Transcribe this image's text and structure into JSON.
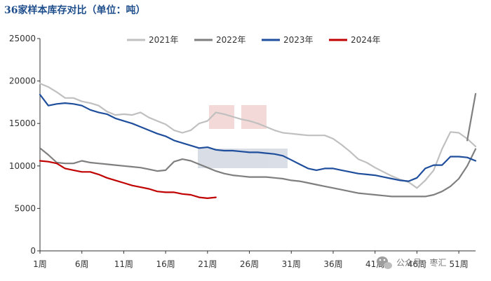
{
  "chart_data": {
    "type": "line",
    "title": "36家样本库存对比（单位：吨）",
    "xlabel": "",
    "ylabel": "",
    "ylim": [
      0,
      25000
    ],
    "yticks": [
      "0",
      "5000",
      "10000",
      "15000",
      "20000",
      "25000"
    ],
    "xticks": [
      "1周",
      "6周",
      "11周",
      "16周",
      "21周",
      "26周",
      "31周",
      "36周",
      "41周",
      "46周",
      "51周"
    ],
    "x_range": [
      1,
      53
    ],
    "legend_position": "top",
    "grid": false,
    "series": [
      {
        "name": "2021年",
        "color": "#c0c0c0",
        "x": [
          1,
          2,
          3,
          4,
          5,
          6,
          7,
          8,
          9,
          10,
          11,
          12,
          13,
          14,
          15,
          16,
          17,
          18,
          19,
          20,
          21,
          22,
          23,
          24,
          25,
          26,
          27,
          28,
          29,
          30,
          31,
          32,
          33,
          34,
          35,
          36,
          37,
          38,
          39,
          40,
          41,
          42,
          43,
          44,
          45,
          46,
          47,
          48,
          49,
          50,
          51,
          52,
          53
        ],
        "y": [
          19700,
          19300,
          18700,
          18000,
          18000,
          17600,
          17400,
          17100,
          16400,
          16000,
          16100,
          16000,
          16300,
          15700,
          15300,
          14900,
          14200,
          13900,
          14200,
          15000,
          15300,
          16300,
          16100,
          15800,
          15500,
          15300,
          15000,
          14600,
          14200,
          13900,
          13800,
          13700,
          13600,
          13600,
          13600,
          13200,
          12500,
          11700,
          10800,
          10400,
          9800,
          9300,
          8800,
          8400,
          8100,
          7400,
          8300,
          9500,
          12000,
          14000,
          13900,
          13200,
          12300
        ]
      },
      {
        "name": "2022年",
        "color": "#7f7f7f",
        "x": [
          1,
          2,
          3,
          4,
          5,
          6,
          7,
          8,
          9,
          10,
          11,
          12,
          13,
          14,
          15,
          16,
          17,
          18,
          19,
          20,
          21,
          22,
          23,
          24,
          25,
          26,
          27,
          28,
          29,
          30,
          31,
          32,
          33,
          34,
          35,
          36,
          37,
          38,
          39,
          40,
          41,
          42,
          43,
          44,
          45,
          46,
          47,
          48,
          49,
          50,
          51,
          52,
          53
        ],
        "y": [
          12100,
          11300,
          10400,
          10300,
          10300,
          10600,
          10400,
          10300,
          10200,
          10100,
          10000,
          9900,
          9800,
          9600,
          9400,
          9500,
          10500,
          10800,
          10600,
          10200,
          9800,
          9400,
          9100,
          8900,
          8800,
          8700,
          8700,
          8700,
          8600,
          8500,
          8300,
          8200,
          8000,
          7800,
          7600,
          7400,
          7200,
          7000,
          6800,
          6700,
          6600,
          6500,
          6400,
          6400,
          6400,
          6400,
          6400,
          6600,
          7000,
          7600,
          8500,
          10000,
          12000
        ]
      },
      {
        "name": "2023年",
        "color": "#1f4e9c",
        "x": [
          1,
          2,
          3,
          4,
          5,
          6,
          7,
          8,
          9,
          10,
          11,
          12,
          13,
          14,
          15,
          16,
          17,
          18,
          19,
          20,
          21,
          22,
          23,
          24,
          25,
          26,
          27,
          28,
          29,
          30,
          31,
          32,
          33,
          34,
          35,
          36,
          37,
          38,
          39,
          40,
          41,
          42,
          43,
          44,
          45,
          46,
          47,
          48,
          49,
          50,
          51,
          52,
          53
        ],
        "y": [
          18400,
          17100,
          17300,
          17400,
          17300,
          17100,
          16600,
          16300,
          16100,
          15600,
          15300,
          15000,
          14600,
          14200,
          13800,
          13500,
          13000,
          12700,
          12400,
          12100,
          12200,
          11900,
          11800,
          11800,
          11700,
          11600,
          11600,
          11500,
          11400,
          11200,
          10700,
          10200,
          9700,
          9500,
          9700,
          9700,
          9500,
          9300,
          9100,
          9000,
          8900,
          8700,
          8500,
          8300,
          8200,
          8600,
          9700,
          10100,
          10100,
          11100,
          11100,
          11000,
          10600
        ]
      },
      {
        "name": "2024年",
        "color": "#c00000",
        "x": [
          1,
          2,
          3,
          4,
          5,
          6,
          7,
          8,
          9,
          10,
          11,
          12,
          13,
          14,
          15,
          16,
          17,
          18,
          19,
          20,
          21,
          22
        ],
        "y": [
          10600,
          10500,
          10300,
          9700,
          9500,
          9300,
          9300,
          9000,
          8600,
          8300,
          8000,
          7700,
          7500,
          7300,
          7000,
          6900,
          6900,
          6700,
          6600,
          6300,
          6200,
          6300
        ]
      },
      {
        "name": "",
        "color": "#7f7f7f",
        "x": [
          52,
          53
        ],
        "y": [
          13000,
          18500
        ]
      }
    ]
  },
  "watermark": {
    "brand": "公众号 · 枣汇"
  }
}
